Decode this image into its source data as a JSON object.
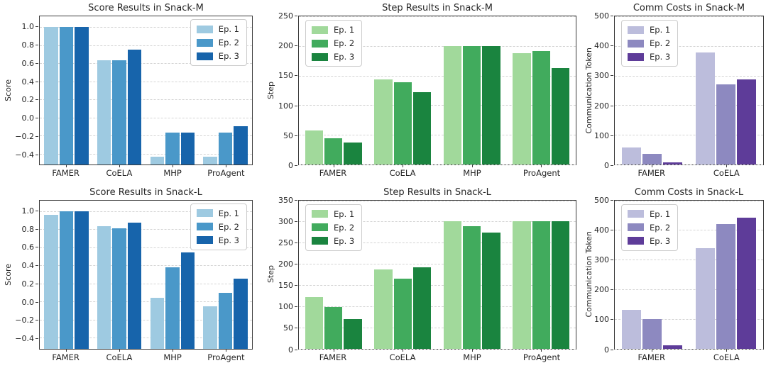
{
  "figure": {
    "background": "#ffffff"
  },
  "legend_labels": [
    "Ep. 1",
    "Ep. 2",
    "Ep. 3"
  ],
  "palettes": {
    "blues": [
      "#9ecae1",
      "#4a98c9",
      "#1764ab"
    ],
    "greens": [
      "#a1d99b",
      "#41ab5d",
      "#1a843f"
    ],
    "purples": [
      "#bcbddc",
      "#8d89c0",
      "#5e3c99"
    ]
  },
  "chart_data": [
    {
      "type": "bar",
      "title": "Score Results in Snack-M",
      "ylabel": "Score",
      "palette": "blues",
      "legend_position": "upper-right",
      "grid": "dashed",
      "bar_base": "axis-bottom",
      "categories": [
        "FAMER",
        "CoELA",
        "MHP",
        "ProAgent"
      ],
      "series": [
        {
          "name": "Ep. 1",
          "values": [
            1.0,
            0.63,
            -0.43,
            -0.43
          ]
        },
        {
          "name": "Ep. 2",
          "values": [
            1.0,
            0.63,
            -0.17,
            -0.17
          ]
        },
        {
          "name": "Ep. 3",
          "values": [
            1.0,
            0.75,
            -0.17,
            -0.1
          ]
        }
      ],
      "ylim": [
        -0.52,
        1.12
      ],
      "yticks": [
        1.0,
        0.8,
        0.6,
        0.4,
        0.2,
        0.0,
        -0.2,
        -0.4
      ],
      "ytick_labels": [
        "1.0",
        "0.8",
        "0.6",
        "0.4",
        "0.2",
        "0.0",
        "−0.2",
        "−0.4"
      ]
    },
    {
      "type": "bar",
      "title": "Step Results in Snack-M",
      "ylabel": "Step",
      "palette": "greens",
      "legend_position": "upper-left",
      "grid": "dashed",
      "bar_base": "axis-bottom",
      "categories": [
        "FAMER",
        "CoELA",
        "MHP",
        "ProAgent"
      ],
      "series": [
        {
          "name": "Ep. 1",
          "values": [
            57,
            144,
            200,
            188
          ]
        },
        {
          "name": "Ep. 2",
          "values": [
            44,
            139,
            200,
            191
          ]
        },
        {
          "name": "Ep. 3",
          "values": [
            37,
            122,
            200,
            163
          ]
        }
      ],
      "ylim": [
        0,
        250
      ],
      "yticks": [
        250,
        200,
        150,
        100,
        50,
        0
      ],
      "ytick_labels": [
        "250",
        "200",
        "150",
        "100",
        "50",
        "0"
      ]
    },
    {
      "type": "bar",
      "title": "Comm Costs in Snack-M",
      "ylabel": "Communication Token",
      "palette": "purples",
      "legend_position": "upper-left",
      "grid": "dashed",
      "bar_base": "axis-bottom",
      "categories": [
        "FAMER",
        "CoELA"
      ],
      "series": [
        {
          "name": "Ep. 1",
          "values": [
            58,
            377
          ]
        },
        {
          "name": "Ep. 2",
          "values": [
            36,
            271
          ]
        },
        {
          "name": "Ep. 3",
          "values": [
            7,
            288
          ]
        }
      ],
      "ylim": [
        0,
        500
      ],
      "yticks": [
        500,
        400,
        300,
        200,
        100,
        0
      ],
      "ytick_labels": [
        "500",
        "400",
        "300",
        "200",
        "100",
        "0"
      ]
    },
    {
      "type": "bar",
      "title": "Score Results in Snack-L",
      "ylabel": "Score",
      "palette": "blues",
      "legend_position": "upper-right",
      "grid": "dashed",
      "bar_base": "axis-bottom",
      "categories": [
        "FAMER",
        "CoELA",
        "MHP",
        "ProAgent"
      ],
      "series": [
        {
          "name": "Ep. 1",
          "values": [
            0.96,
            0.83,
            0.04,
            -0.05
          ]
        },
        {
          "name": "Ep. 2",
          "values": [
            1.0,
            0.81,
            0.38,
            0.1
          ]
        },
        {
          "name": "Ep. 3",
          "values": [
            1.0,
            0.87,
            0.54,
            0.25
          ]
        }
      ],
      "ylim": [
        -0.52,
        1.12
      ],
      "yticks": [
        1.0,
        0.8,
        0.6,
        0.4,
        0.2,
        0.0,
        -0.2,
        -0.4
      ],
      "ytick_labels": [
        "1.0",
        "0.8",
        "0.6",
        "0.4",
        "0.2",
        "0.0",
        "−0.2",
        "−0.4"
      ]
    },
    {
      "type": "bar",
      "title": "Step Results in Snack-L",
      "ylabel": "Step",
      "palette": "greens",
      "legend_position": "upper-left",
      "grid": "dashed",
      "bar_base": "axis-bottom",
      "categories": [
        "FAMER",
        "CoELA",
        "MHP",
        "ProAgent"
      ],
      "series": [
        {
          "name": "Ep. 1",
          "values": [
            121,
            186,
            300,
            300
          ]
        },
        {
          "name": "Ep. 2",
          "values": [
            98,
            165,
            289,
            300
          ]
        },
        {
          "name": "Ep. 3",
          "values": [
            70,
            191,
            274,
            300
          ]
        }
      ],
      "ylim": [
        0,
        350
      ],
      "yticks": [
        350,
        300,
        250,
        200,
        150,
        100,
        50,
        0
      ],
      "ytick_labels": [
        "350",
        "300",
        "250",
        "200",
        "150",
        "100",
        "50",
        "0"
      ]
    },
    {
      "type": "bar",
      "title": "Comm Costs in Snack-L",
      "ylabel": "Communication Token",
      "palette": "purples",
      "legend_position": "upper-left",
      "grid": "dashed",
      "bar_base": "axis-bottom",
      "categories": [
        "FAMER",
        "CoELA"
      ],
      "series": [
        {
          "name": "Ep. 1",
          "values": [
            130,
            338
          ]
        },
        {
          "name": "Ep. 2",
          "values": [
            99,
            419
          ]
        },
        {
          "name": "Ep. 3",
          "values": [
            11,
            441
          ]
        }
      ],
      "ylim": [
        0,
        500
      ],
      "yticks": [
        500,
        400,
        300,
        200,
        100,
        0
      ],
      "ytick_labels": [
        "500",
        "400",
        "300",
        "200",
        "100",
        "0"
      ]
    }
  ],
  "layout": {
    "gutters": {
      "col0": 55,
      "col1": 50,
      "col2": 47
    },
    "right_margins": {
      "col0": 14,
      "col1": 6,
      "col2": 3
    }
  }
}
